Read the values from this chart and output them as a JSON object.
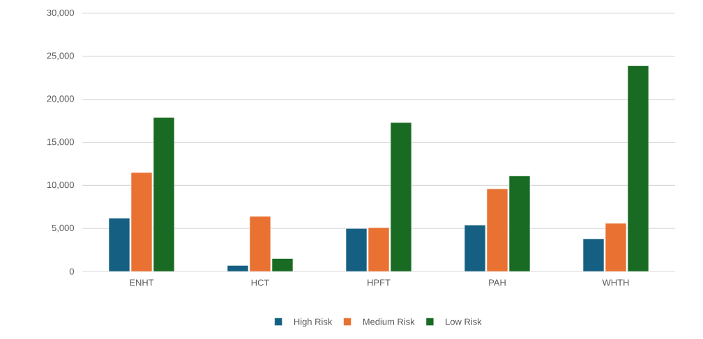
{
  "chart_data": {
    "type": "bar",
    "categories": [
      "ENHT",
      "HCT",
      "HPFT",
      "PAH",
      "WHTH"
    ],
    "series": [
      {
        "name": "High Risk",
        "color": "#156082",
        "values": [
          6200,
          700,
          5000,
          5400,
          3800
        ]
      },
      {
        "name": "Medium Risk",
        "color": "#e97132",
        "values": [
          11500,
          6400,
          5100,
          9600,
          5600
        ]
      },
      {
        "name": "Low Risk",
        "color": "#196b24",
        "values": [
          17900,
          1500,
          17300,
          11100,
          23900
        ]
      }
    ],
    "ylim": [
      0,
      30000
    ],
    "yticks": [
      0,
      {
        "value": 5000,
        "label": "5,000"
      },
      {
        "value": 10000,
        "label": "10,000"
      },
      {
        "value": 15000,
        "label": "15,000"
      },
      {
        "value": 20000,
        "label": "20,000"
      },
      {
        "value": 25000,
        "label": "25,000"
      },
      {
        "value": 30000,
        "label": "30,000"
      }
    ],
    "grid": "y",
    "legend": "bottom"
  }
}
